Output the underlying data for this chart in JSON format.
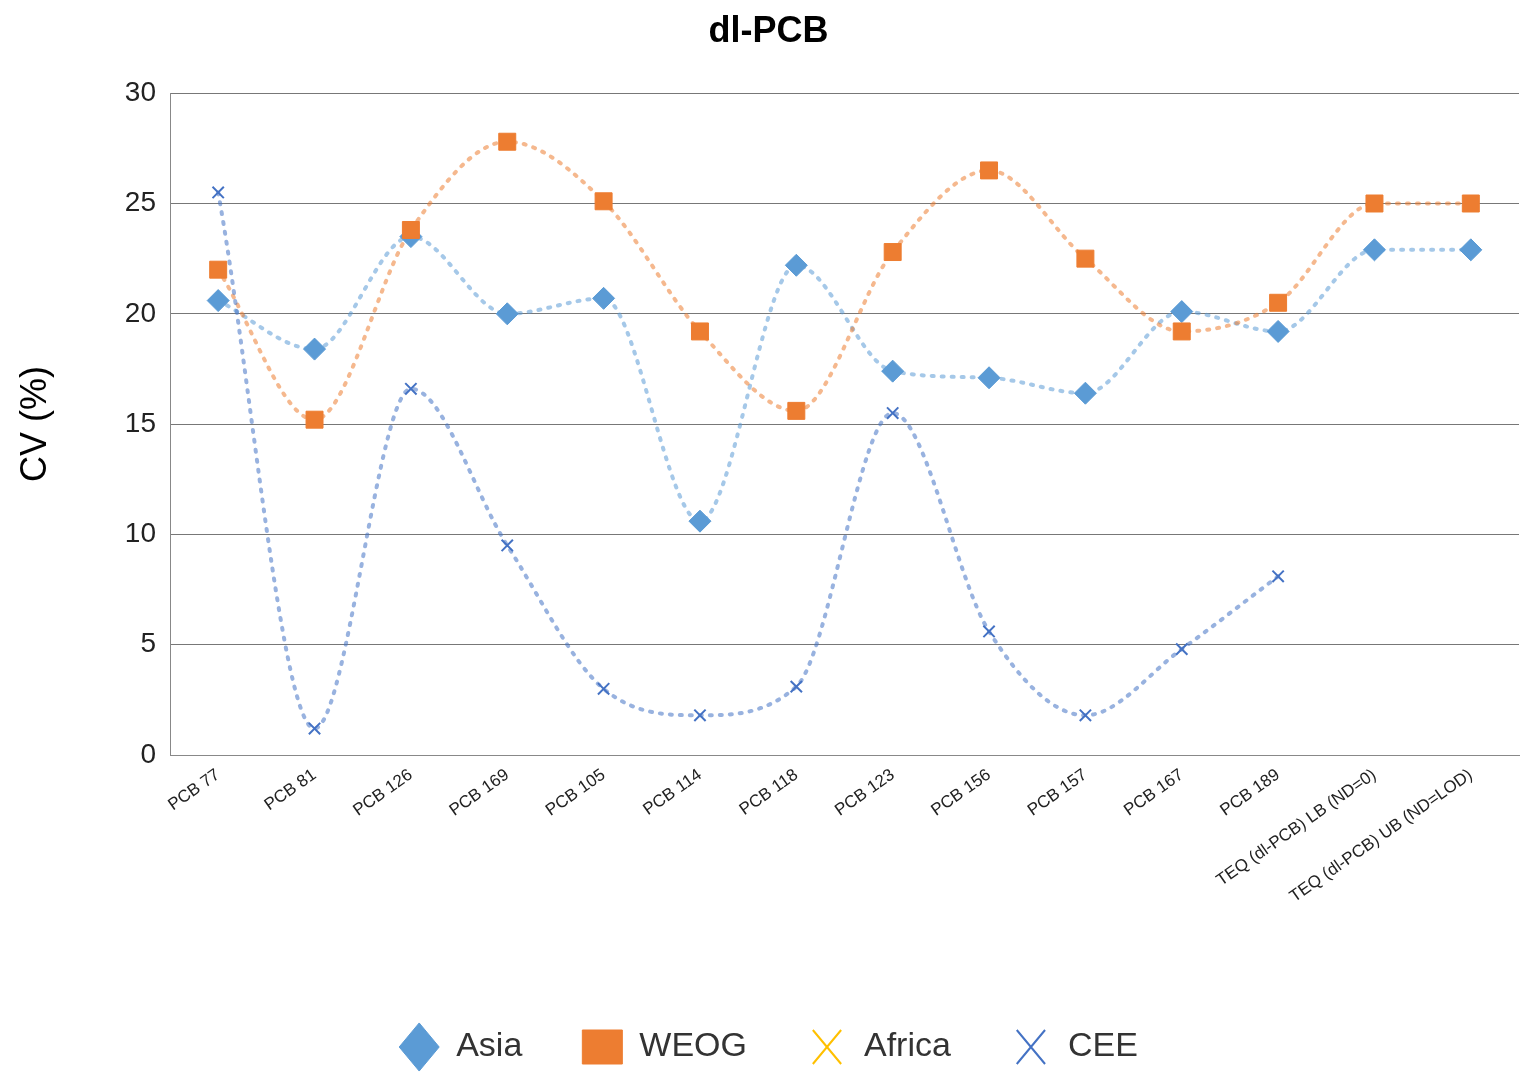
{
  "chart_data": {
    "type": "line",
    "title": "dl-PCB",
    "ylabel": "CV (%)",
    "categories": [
      "PCB 77",
      "PCB 81",
      "PCB 126",
      "PCB 169",
      "PCB 105",
      "PCB 114",
      "PCB 118",
      "PCB 123",
      "PCB 156",
      "PCB 157",
      "PCB 167",
      "PCB 189",
      "TEQ (dl-PCB) LB (ND=0)",
      "TEQ (dl-PCB) UB (ND=LOD)"
    ],
    "series": [
      {
        "name": "Asia",
        "color": "#5b9bd5",
        "marker": "diamond",
        "line_style": "dotted",
        "values": [
          20.6,
          18.4,
          23.5,
          20.0,
          20.7,
          10.6,
          22.2,
          17.4,
          17.1,
          16.4,
          20.1,
          19.2,
          22.9,
          22.9
        ]
      },
      {
        "name": "WEOG",
        "color": "#ed7d31",
        "marker": "square",
        "line_style": "dotted",
        "values": [
          22.0,
          15.2,
          23.8,
          27.8,
          25.1,
          19.2,
          15.6,
          22.8,
          26.5,
          22.5,
          19.2,
          20.5,
          25.0,
          25.0
        ]
      },
      {
        "name": "Africa",
        "color": "#ffc000",
        "marker": "cross",
        "line_style": "solid",
        "values": [
          null,
          null,
          null,
          null,
          null,
          null,
          null,
          null,
          null,
          null,
          null,
          null,
          null,
          null
        ]
      },
      {
        "name": "CEE",
        "color": "#4472c4",
        "marker": "cross",
        "line_style": "dotted",
        "values": [
          25.5,
          1.2,
          16.6,
          9.5,
          3.0,
          1.8,
          3.1,
          15.5,
          5.6,
          1.8,
          4.8,
          8.1,
          null,
          null
        ]
      }
    ],
    "ylim": [
      0,
      30
    ],
    "yticks": [
      0,
      5,
      10,
      15,
      20,
      25,
      30
    ],
    "grid": "y",
    "legend": "bottom"
  }
}
